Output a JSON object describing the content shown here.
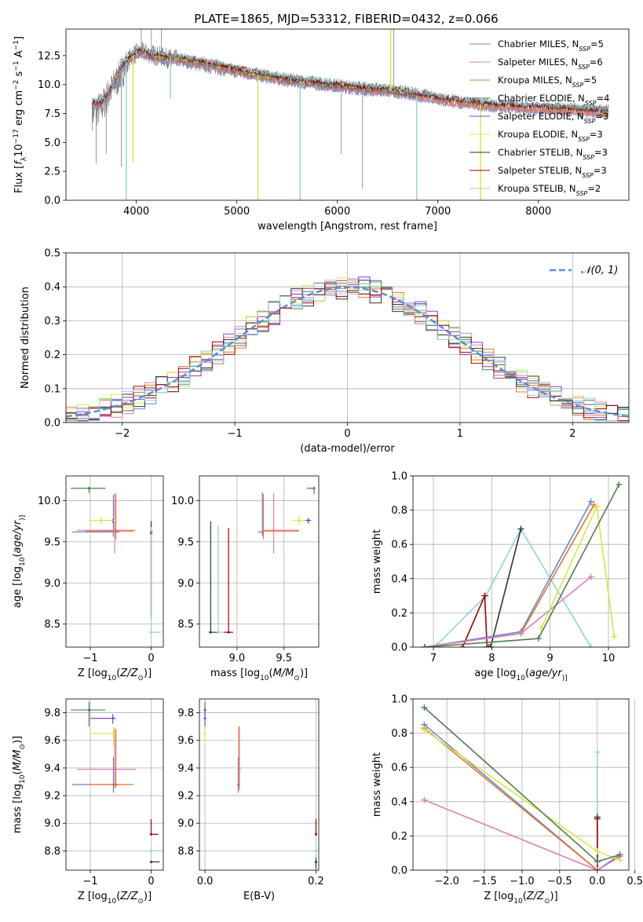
{
  "page": {
    "title": "PLATE=1865, MJD=53312, FIBERID=0432, z=0.066"
  },
  "series_styles": [
    {
      "name": "Chabrier MILES",
      "nssp": "5",
      "color": "#5b8bd6"
    },
    {
      "name": "Salpeter MILES",
      "nssp": "6",
      "color": "#e07eb4"
    },
    {
      "name": "Kroupa MILES",
      "nssp": "5",
      "color": "#e8742f"
    },
    {
      "name": "Chabrier ELODIE",
      "nssp": "4",
      "color": "#4f7f4f"
    },
    {
      "name": "Salpeter ELODIE",
      "nssp": "3",
      "color": "#8b3ec8"
    },
    {
      "name": "Kroupa ELODIE",
      "nssp": "3",
      "color": "#d6e845"
    },
    {
      "name": "Chabrier STELIB",
      "nssp": "3",
      "color": "#333333"
    },
    {
      "name": "Salpeter STELIB",
      "nssp": "3",
      "color": "#a00000"
    },
    {
      "name": "Kroupa STELIB",
      "nssp": "2",
      "color": "#8fd3d8"
    }
  ],
  "chart_data": [
    {
      "id": "spectrum",
      "type": "line",
      "xlabel": "wavelength [Angstrom, rest frame]",
      "ylabel_parts": [
        "Flux [",
        "f",
        "λ",
        "10",
        "−17",
        " erg cm",
        "−2",
        " s",
        "−1",
        " A",
        "−1",
        "]"
      ],
      "xlim": [
        3300,
        8900
      ],
      "ylim": [
        0,
        14.8
      ],
      "xticks": [
        4000,
        5000,
        6000,
        7000,
        8000
      ],
      "yticks": [
        0.0,
        2.5,
        5.0,
        7.5,
        10.0,
        12.5
      ],
      "ytick_labels": [
        "0.0",
        "2.5",
        "5.0",
        "7.5",
        "10.0",
        "12.5"
      ],
      "legend_location": "upper right",
      "data_color": "#7f7f7f",
      "data_continuum": {
        "x": [
          3550,
          3650,
          3750,
          3850,
          3950,
          4050,
          4150,
          4300,
          4500,
          4700,
          4900,
          5100,
          5300,
          5500,
          5700,
          5900,
          6100,
          6300,
          6500,
          6700,
          6900,
          7100,
          7300,
          7500,
          7700,
          7900,
          8100,
          8300,
          8500,
          8700
        ],
        "y": [
          7.5,
          8.0,
          9.5,
          11.0,
          12.5,
          12.8,
          12.6,
          12.3,
          12.0,
          11.6,
          11.3,
          11.0,
          10.7,
          10.4,
          10.2,
          10.0,
          9.8,
          9.6,
          9.5,
          9.3,
          9.0,
          8.6,
          8.4,
          8.2,
          8.1,
          8.0,
          7.9,
          7.9,
          7.8,
          7.7
        ]
      },
      "model_continuum": {
        "x": [
          3550,
          3650,
          3750,
          3850,
          3950,
          4050,
          4150,
          4300,
          4500,
          4700,
          4900,
          5100,
          5300,
          5500,
          5700,
          5900,
          6100,
          6300,
          6500,
          6700,
          6900,
          7100,
          7300,
          7500,
          7700,
          7900,
          8100,
          8300,
          8500,
          8700
        ],
        "y": [
          8.3,
          8.4,
          9.6,
          11.5,
          12.4,
          12.9,
          12.5,
          12.3,
          12.1,
          11.8,
          11.4,
          11.0,
          10.7,
          10.4,
          10.2,
          10.0,
          9.8,
          9.6,
          9.5,
          9.2,
          8.9,
          8.6,
          8.4,
          8.2,
          8.1,
          8.0,
          7.9,
          7.8,
          7.7,
          7.6
        ]
      },
      "features": [
        {
          "x": 3900,
          "depth_to": 0.0
        },
        {
          "x": 3968,
          "depth_to": 3.3
        },
        {
          "x": 4340,
          "depth_to": 8.8
        },
        {
          "x": 5210,
          "depth_to": 0.0
        },
        {
          "x": 5630,
          "depth_to": 0.0
        },
        {
          "x": 6530,
          "depth_to": 14.8
        },
        {
          "x": 6790,
          "depth_to": 0.0
        },
        {
          "x": 7425,
          "depth_to": 0.0
        }
      ]
    },
    {
      "id": "residuals",
      "type": "bar",
      "xlabel": "(data-model)/error",
      "ylabel": "Normed distribution",
      "xlim": [
        -2.5,
        2.5
      ],
      "ylim": [
        0,
        0.5
      ],
      "xticks": [
        -2,
        -1,
        0,
        1,
        2
      ],
      "xtick_labels": [
        "−2",
        "−1",
        "0",
        "1",
        "2"
      ],
      "yticks": [
        0.0,
        0.1,
        0.2,
        0.3,
        0.4,
        0.5
      ],
      "ytick_labels": [
        "0.0",
        "0.1",
        "0.2",
        "0.3",
        "0.4",
        "0.5"
      ],
      "grid": true,
      "bin_width": 0.1,
      "reference_curve": {
        "label": "𝒩(0, 1)",
        "mean": 0,
        "sigma": 1,
        "color": "#5b8bd6"
      },
      "legend_location": "upper right"
    },
    {
      "id": "age_vs_Z",
      "type": "scatter",
      "xlabel_parts": [
        "Z [log",
        "10",
        "(",
        "Z/Z",
        "⊙",
        ")]"
      ],
      "ylabel_parts": [
        "age  [log",
        "10",
        "(",
        "age/yr",
        ")]"
      ],
      "xlim": [
        -1.4,
        0.2
      ],
      "ylim": [
        8.22,
        10.3
      ],
      "xticks": [
        -1,
        0
      ],
      "xtick_labels": [
        "−1",
        "0"
      ],
      "yticks": [
        8.5,
        9.0,
        9.5,
        10.0
      ],
      "ytick_labels": [
        "8.5",
        "9.0",
        "9.5",
        "10.0"
      ],
      "grid": true,
      "points": [
        {
          "s": 0,
          "x": -0.62,
          "y": 9.62,
          "xerr": [
            0.68,
            0.1
          ],
          "yerr": [
            0.06,
            0.45
          ]
        },
        {
          "s": 1,
          "x": -0.6,
          "y": 9.64,
          "xerr": [
            0.62,
            0.35
          ],
          "yerr": [
            0.28,
            0.45
          ]
        },
        {
          "s": 2,
          "x": -0.58,
          "y": 9.63,
          "xerr": [
            0.5,
            0.29
          ],
          "yerr": [
            0.1,
            0.45
          ]
        },
        {
          "s": 3,
          "x": -1.02,
          "y": 10.15,
          "xerr": [
            0.3,
            0.27
          ],
          "yerr": [
            0.06,
            0.02
          ]
        },
        {
          "s": 4,
          "x": -0.63,
          "y": 9.76,
          "xerr": [
            0.02,
            0.05
          ],
          "yerr": [
            0.03,
            0.01
          ]
        },
        {
          "s": 5,
          "x": -0.82,
          "y": 9.76,
          "xerr": [
            0.2,
            0.27
          ],
          "yerr": [
            0.05,
            0.04
          ]
        },
        {
          "s": 6,
          "x": 0.0,
          "y": 9.62,
          "xerr": [
            0.01,
            0.01
          ],
          "yerr": [
            1.05,
            0.13
          ]
        },
        {
          "s": 7,
          "x": 0.0,
          "y": 9.6,
          "xerr": [
            0.01,
            0.01
          ],
          "yerr": [
            1.0,
            0.1
          ]
        },
        {
          "s": 8,
          "x": 0.0,
          "y": 8.4,
          "xerr": [
            0.03,
            0.16
          ],
          "yerr": [
            0.01,
            1.28
          ]
        }
      ]
    },
    {
      "id": "age_vs_mass",
      "type": "scatter",
      "xlabel_parts": [
        "mass [log",
        "10",
        "(",
        "M/M",
        "⊙",
        ")]"
      ],
      "xlim": [
        8.6,
        9.87
      ],
      "ylim": [
        8.22,
        10.3
      ],
      "xticks": [
        9.0,
        9.5
      ],
      "xtick_labels": [
        "9.0",
        "9.5"
      ],
      "yticks": [
        8.5,
        9.0,
        9.5,
        10.0
      ],
      "ytick_labels": [
        "8.5",
        "9.0",
        "9.5",
        "10.0"
      ],
      "grid": true,
      "points": [
        {
          "s": 0,
          "x": 9.27,
          "y": 9.62,
          "xerr": [
            0.05,
            0.0
          ],
          "yerr": [
            0.05,
            0.48
          ]
        },
        {
          "s": 1,
          "x": 9.39,
          "y": 9.64,
          "xerr": [
            0.1,
            0.27
          ],
          "yerr": [
            0.28,
            0.45
          ]
        },
        {
          "s": 2,
          "x": 9.28,
          "y": 9.63,
          "xerr": [
            0.0,
            0.38
          ],
          "yerr": [
            0.1,
            0.45
          ]
        },
        {
          "s": 3,
          "x": 9.82,
          "y": 10.15,
          "xerr": [
            0.08,
            0.0
          ],
          "yerr": [
            0.07,
            0.02
          ]
        },
        {
          "s": 4,
          "x": 9.76,
          "y": 9.76,
          "xerr": [
            0.04,
            0.03
          ],
          "yerr": [
            0.04,
            0.03
          ]
        },
        {
          "s": 5,
          "x": 9.66,
          "y": 9.76,
          "xerr": [
            0.07,
            0.07
          ],
          "yerr": [
            0.06,
            0.06
          ]
        },
        {
          "s": 6,
          "x": 8.72,
          "y": 8.4,
          "xerr": [
            0.02,
            0.08
          ],
          "yerr": [
            0.0,
            1.35
          ]
        },
        {
          "s": 7,
          "x": 8.91,
          "y": 8.4,
          "xerr": [
            0.05,
            0.05
          ],
          "yerr": [
            0.0,
            1.27
          ]
        },
        {
          "s": 8,
          "x": 8.8,
          "y": 8.4,
          "xerr": [
            0.0,
            0.06
          ],
          "yerr": [
            0.0,
            1.3
          ]
        }
      ]
    },
    {
      "id": "weight_vs_age",
      "type": "line",
      "xlabel_parts": [
        "age  [log",
        "10",
        "(",
        "age/yr",
        ")]"
      ],
      "ylabel": "mass weight",
      "xlim": [
        6.65,
        10.35
      ],
      "ylim": [
        0,
        1.0
      ],
      "xticks": [
        7,
        8,
        9,
        10
      ],
      "xtick_labels": [
        "7",
        "8",
        "9",
        "10"
      ],
      "yticks": [
        0.0,
        0.2,
        0.4,
        0.6,
        0.8,
        1.0
      ],
      "ytick_labels": [
        "0.0",
        "0.2",
        "0.4",
        "0.6",
        "0.8",
        "1.0"
      ],
      "grid": true,
      "series": [
        {
          "s": 8,
          "x": [
            6.85,
            7.05,
            7.9,
            8.5,
            9.7
          ],
          "y": [
            0.0,
            0.01,
            0.3,
            0.69,
            0.0
          ]
        },
        {
          "s": 6,
          "x": [
            7.95,
            7.98,
            8.5
          ],
          "y": [
            0.0,
            0.0,
            0.69
          ]
        },
        {
          "s": 7,
          "x": [
            7.5,
            7.88,
            7.92
          ],
          "y": [
            0.0,
            0.3,
            0.0
          ]
        },
        {
          "s": 0,
          "x": [
            6.85,
            8.5,
            9.7
          ],
          "y": [
            0.0,
            0.09,
            0.85
          ]
        },
        {
          "s": 2,
          "x": [
            6.85,
            8.5,
            9.75
          ],
          "y": [
            0.0,
            0.08,
            0.83
          ]
        },
        {
          "s": 1,
          "x": [
            6.85,
            8.5,
            9.7
          ],
          "y": [
            0.0,
            0.08,
            0.41
          ]
        },
        {
          "s": 5,
          "x": [
            8.85,
            9.8,
            10.1
          ],
          "y": [
            0.11,
            0.82,
            0.06
          ]
        },
        {
          "s": 3,
          "x": [
            6.85,
            8.8,
            10.18
          ],
          "y": [
            0.0,
            0.05,
            0.95
          ]
        }
      ]
    },
    {
      "id": "mass_vs_Z",
      "type": "scatter",
      "xlabel_parts": [
        "Z [log",
        "10",
        "(",
        "Z/Z",
        "⊙",
        ")]"
      ],
      "ylabel_parts": [
        "mass [log",
        "10",
        "(",
        "M/M",
        "⊙",
        ")]"
      ],
      "xlim": [
        -1.4,
        0.2
      ],
      "ylim": [
        8.66,
        9.9
      ],
      "xticks": [
        -1,
        0
      ],
      "xtick_labels": [
        "−1",
        "0"
      ],
      "yticks": [
        8.8,
        9.0,
        9.2,
        9.4,
        9.6,
        9.8
      ],
      "ytick_labels": [
        "8.8",
        "9.0",
        "9.2",
        "9.4",
        "9.6",
        "9.8"
      ],
      "grid": true,
      "points": [
        {
          "s": 0,
          "x": -0.62,
          "y": 9.28,
          "xerr": [
            0.68,
            0.1
          ],
          "yerr": [
            0.06,
            0.2
          ]
        },
        {
          "s": 1,
          "x": -0.6,
          "y": 9.39,
          "xerr": [
            0.62,
            0.35
          ],
          "yerr": [
            0.14,
            0.3
          ]
        },
        {
          "s": 2,
          "x": -0.58,
          "y": 9.28,
          "xerr": [
            0.5,
            0.29
          ],
          "yerr": [
            0.02,
            0.4
          ]
        },
        {
          "s": 3,
          "x": -1.02,
          "y": 9.82,
          "xerr": [
            0.3,
            0.27
          ],
          "yerr": [
            0.12,
            0.06
          ]
        },
        {
          "s": 4,
          "x": -0.63,
          "y": 9.76,
          "xerr": [
            0.37,
            0.05
          ],
          "yerr": [
            0.04,
            0.03
          ]
        },
        {
          "s": 5,
          "x": -0.62,
          "y": 9.65,
          "xerr": [
            0.4,
            0.04
          ],
          "yerr": [
            0.09,
            0.05
          ]
        },
        {
          "s": 6,
          "x": 0.0,
          "y": 8.72,
          "xerr": [
            0.0,
            0.14
          ],
          "yerr": [
            0.0,
            0.0
          ]
        },
        {
          "s": 7,
          "x": 0.0,
          "y": 8.92,
          "xerr": [
            0.0,
            0.12
          ],
          "yerr": [
            0.0,
            0.11
          ]
        },
        {
          "s": 8,
          "x": 0.0,
          "y": 8.8,
          "xerr": [
            0.0,
            0.14
          ],
          "yerr": [
            0.02,
            0.0
          ]
        }
      ]
    },
    {
      "id": "mass_vs_ebv",
      "type": "scatter",
      "xlabel": "E(B-V)",
      "xlim": [
        -0.01,
        0.205
      ],
      "ylim": [
        8.66,
        9.9
      ],
      "xticks": [
        0.0,
        0.2
      ],
      "xtick_labels": [
        "0.0",
        "0.2"
      ],
      "yticks": [
        8.8,
        9.0,
        9.2,
        9.4,
        9.6,
        9.8
      ],
      "ytick_labels": [
        "8.8",
        "9.0",
        "9.2",
        "9.4",
        "9.6",
        "9.8"
      ],
      "grid": true,
      "points": [
        {
          "s": 0,
          "x": 0.06,
          "y": 9.28,
          "yerr": [
            0.06,
            0.2
          ]
        },
        {
          "s": 1,
          "x": 0.062,
          "y": 9.39,
          "yerr": [
            0.14,
            0.31
          ]
        },
        {
          "s": 2,
          "x": 0.061,
          "y": 9.28,
          "yerr": [
            0.04,
            0.42
          ]
        },
        {
          "s": 3,
          "x": 0.0,
          "y": 9.82,
          "yerr": [
            0.04,
            0.06
          ]
        },
        {
          "s": 4,
          "x": 0.0,
          "y": 9.76,
          "yerr": [
            0.06,
            0.08
          ]
        },
        {
          "s": 5,
          "x": 0.0,
          "y": 9.65,
          "yerr": [
            0.09,
            0.05
          ]
        },
        {
          "s": 6,
          "x": 0.2,
          "y": 8.72,
          "yerr": [
            0.05,
            0.04
          ]
        },
        {
          "s": 7,
          "x": 0.2,
          "y": 8.92,
          "yerr": [
            0.0,
            0.11
          ]
        },
        {
          "s": 8,
          "x": 0.2,
          "y": 8.8,
          "yerr": [
            0.05,
            0.05
          ]
        }
      ]
    },
    {
      "id": "weight_vs_Z",
      "type": "line",
      "xlabel_parts": [
        "Z [log",
        "10",
        "(",
        "Z/Z",
        "⊙",
        ")]"
      ],
      "ylabel": "mass weight",
      "xlim": [
        -2.45,
        0.42
      ],
      "ylim": [
        0,
        1.0
      ],
      "xticks": [
        -2.0,
        -1.5,
        -1.0,
        -0.5,
        0.0,
        0.5
      ],
      "xtick_labels": [
        "−2.0",
        "−1.5",
        "−1.0",
        "−0.5",
        "0.0",
        "0.5"
      ],
      "yticks": [
        0.0,
        0.2,
        0.4,
        0.6,
        0.8,
        1.0
      ],
      "ytick_labels": [
        "0.0",
        "0.2",
        "0.4",
        "0.6",
        "0.8",
        "1.0"
      ],
      "grid": true,
      "series": [
        {
          "s": 8,
          "x": [
            0.0,
            0.0,
            0.0
          ],
          "y": [
            0.0,
            0.31,
            0.69
          ]
        },
        {
          "s": 6,
          "x": [
            0.0,
            0.0
          ],
          "y": [
            0.0,
            0.31
          ]
        },
        {
          "s": 7,
          "x": [
            0.0,
            0.0
          ],
          "y": [
            0.0,
            0.3
          ]
        },
        {
          "s": 0,
          "x": [
            -2.3,
            0.0,
            0.3
          ],
          "y": [
            0.85,
            0.0,
            0.09
          ]
        },
        {
          "s": 2,
          "x": [
            -2.3,
            0.0,
            0.3
          ],
          "y": [
            0.83,
            0.0,
            0.08
          ]
        },
        {
          "s": 1,
          "x": [
            -2.3,
            0.0,
            0.3
          ],
          "y": [
            0.41,
            0.0,
            0.08
          ]
        },
        {
          "s": 5,
          "x": [
            -2.3,
            0.0,
            0.3
          ],
          "y": [
            0.82,
            0.11,
            0.06
          ]
        },
        {
          "s": 3,
          "x": [
            -2.3,
            0.0,
            0.3
          ],
          "y": [
            0.95,
            0.05,
            0.09
          ]
        }
      ]
    }
  ]
}
